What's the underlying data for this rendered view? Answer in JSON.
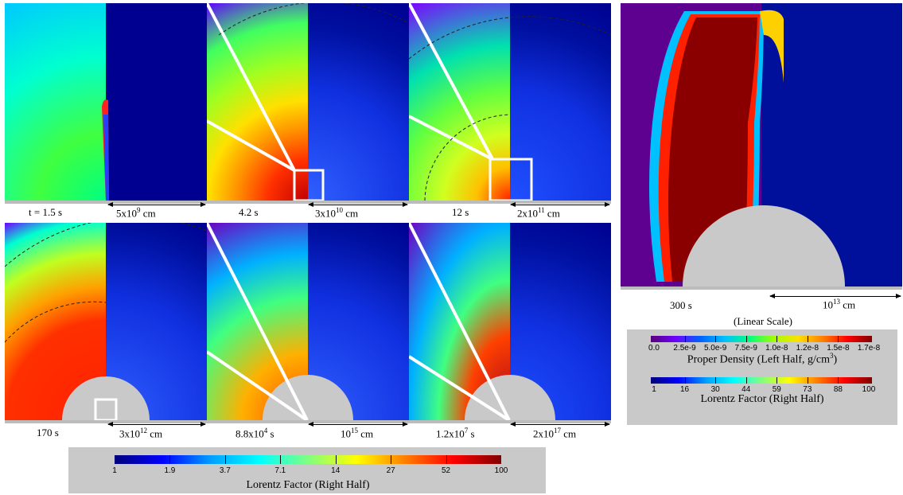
{
  "panels": [
    {
      "time": "t = 1.5 s",
      "scale": "5x10",
      "exp": "9",
      "unit": " cm"
    },
    {
      "time": "4.2 s",
      "scale": "3x10",
      "exp": "10",
      "unit": " cm"
    },
    {
      "time": "12 s",
      "scale": "2x10",
      "exp": "11",
      "unit": " cm"
    },
    {
      "time": "170 s",
      "scale": "3x10",
      "exp": "12",
      "unit": " cm"
    },
    {
      "time": "8.8x10",
      "time_exp": "4",
      "time_unit": " s",
      "scale": "10",
      "exp": "15",
      "unit": " cm"
    },
    {
      "time": "1.2x10",
      "time_exp": "7",
      "time_unit": " s",
      "scale": "2x10",
      "exp": "17",
      "unit": " cm"
    },
    {
      "time": "300 s",
      "scale": "10",
      "exp": "13",
      "unit": " cm",
      "note": "(Linear Scale)"
    }
  ],
  "colorbar_bottom": {
    "title": "Lorentz Factor (Right Half)",
    "ticks": [
      "1",
      "1.9",
      "3.7",
      "7.1",
      "14",
      "27",
      "52",
      "100"
    ]
  },
  "colorbar_density": {
    "title": "Proper Density (Left Half, g/cm",
    "title_exp": "3",
    "title_end": ")",
    "ticks": [
      "0.0",
      "2.5e-9",
      "5.0e-9",
      "7.5e-9",
      "1.0e-8",
      "1.2e-8",
      "1.5e-8",
      "1.7e-8"
    ]
  },
  "colorbar_lorentz": {
    "title": "Lorentz Factor (Right Half)",
    "ticks": [
      "1",
      "16",
      "30",
      "44",
      "59",
      "73",
      "88",
      "100"
    ]
  },
  "colors": {
    "jet": "linear-gradient(to right,#00007a,#0000ff,#00a0ff,#00ffff,#80ff80,#ffff00,#ff8000,#ff0000,#800000)",
    "density": "linear-gradient(to right,#5a007a,#7000ff,#0060ff,#00c0ff,#00ff80,#a0ff00,#ffe000,#ff8000,#ff0000,#800000)",
    "background": "#00007a",
    "grey": "#c9c9c9"
  }
}
